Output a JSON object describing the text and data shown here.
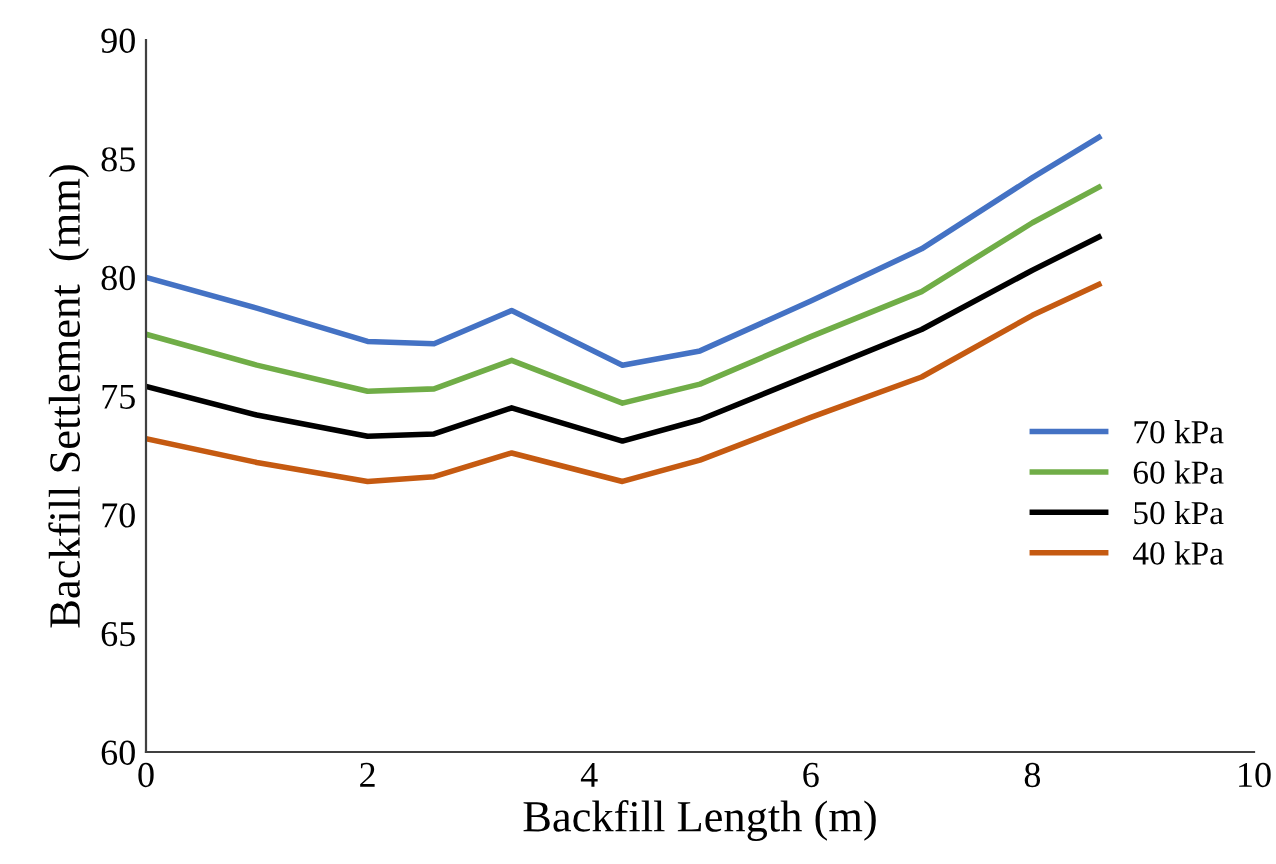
{
  "chart_data": {
    "type": "line",
    "xlabel": "Backfill Length (m)",
    "ylabel": "Backfill Settlement  (mm)",
    "x": [
      0,
      1,
      2,
      2.6,
      3.3,
      4.3,
      5,
      6,
      7,
      8,
      8.6
    ],
    "series": [
      {
        "name": "70 kPa",
        "color": "#4472c4",
        "values": [
          80.0,
          78.7,
          77.3,
          77.2,
          78.6,
          76.3,
          76.9,
          79.0,
          81.2,
          84.2,
          85.9
        ]
      },
      {
        "name": "60 kPa",
        "color": "#70ad47",
        "values": [
          77.6,
          76.3,
          75.2,
          75.3,
          76.5,
          74.7,
          75.5,
          77.5,
          79.4,
          82.3,
          83.8
        ]
      },
      {
        "name": "50 kPa",
        "color": "#000000",
        "values": [
          75.4,
          74.2,
          73.3,
          73.4,
          74.5,
          73.1,
          74.0,
          75.9,
          77.8,
          80.3,
          81.7
        ]
      },
      {
        "name": "40 kPa",
        "color": "#c55a11",
        "values": [
          73.2,
          72.2,
          71.4,
          71.6,
          72.6,
          71.4,
          72.3,
          74.1,
          75.8,
          78.4,
          79.7
        ]
      }
    ],
    "xlim": [
      0,
      10
    ],
    "xticks": [
      0,
      2,
      4,
      6,
      8,
      10
    ],
    "ylim": [
      60,
      90
    ],
    "yticks": [
      60,
      65,
      70,
      75,
      80,
      85,
      90
    ],
    "grid": false,
    "legend": "right",
    "marker": "none",
    "line_style": "solid"
  }
}
